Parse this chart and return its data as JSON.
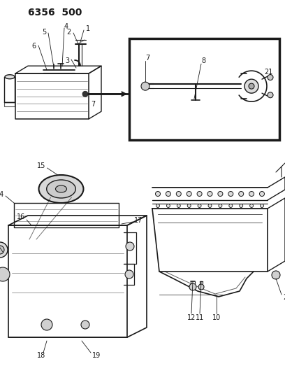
{
  "title": "6356  500",
  "bg_color": "#ffffff",
  "line_color": "#1a1a1a",
  "lfs": 7.0,
  "figw": 4.08,
  "figh": 5.33,
  "dpi": 100
}
